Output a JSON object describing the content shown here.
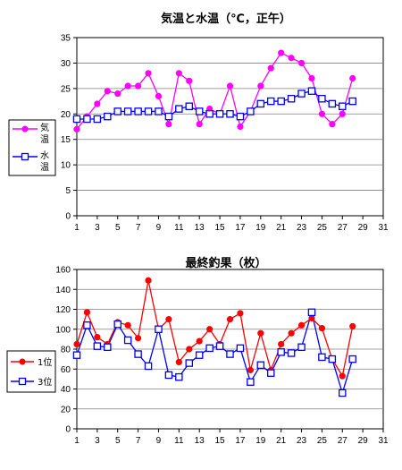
{
  "chart_data": [
    {
      "type": "line",
      "title": "気温と水温（℃，正午）",
      "xlabel": "",
      "ylabel": "",
      "x_ticks": [
        1,
        3,
        5,
        7,
        9,
        11,
        13,
        15,
        17,
        19,
        21,
        23,
        25,
        27,
        29,
        31
      ],
      "xlim": [
        1,
        31
      ],
      "ylim": [
        0,
        35
      ],
      "y_ticks": [
        0,
        5,
        10,
        15,
        20,
        25,
        30,
        35
      ],
      "grid": "horizontal",
      "legend_position": "left",
      "x": [
        1,
        2,
        3,
        4,
        5,
        6,
        7,
        8,
        9,
        10,
        11,
        12,
        13,
        14,
        15,
        16,
        17,
        18,
        19,
        20,
        21,
        22,
        23,
        24,
        25,
        26,
        27,
        28
      ],
      "series": [
        {
          "name": "気温",
          "legend_chars": [
            "気",
            "温"
          ],
          "color": "#ff00ff",
          "marker": "circle",
          "values": [
            17,
            19.5,
            22,
            24.5,
            24,
            25.5,
            25.5,
            28,
            23.5,
            18,
            28,
            26.5,
            18,
            21,
            20,
            25.5,
            17.5,
            20.5,
            25.5,
            29,
            32,
            31,
            30,
            27,
            20,
            18,
            20,
            27
          ]
        },
        {
          "name": "水温",
          "legend_chars": [
            "水",
            "温"
          ],
          "color": "#0000ff",
          "marker": "square",
          "values": [
            19,
            19,
            19,
            19.5,
            20.5,
            20.5,
            20.5,
            20.5,
            20.5,
            19.5,
            21,
            21.5,
            20.5,
            20,
            20,
            20,
            19.5,
            20.5,
            22,
            22.5,
            22.5,
            23,
            24,
            24.5,
            23,
            22,
            21.5,
            22.5
          ]
        }
      ]
    },
    {
      "type": "line",
      "title": "最終釣果（枚）",
      "xlabel": "",
      "ylabel": "",
      "x_ticks": [
        1,
        3,
        5,
        7,
        9,
        11,
        13,
        15,
        17,
        19,
        21,
        23,
        25,
        27,
        29,
        31
      ],
      "xlim": [
        1,
        31
      ],
      "ylim": [
        0,
        160
      ],
      "y_ticks": [
        0,
        20,
        40,
        60,
        80,
        100,
        120,
        140,
        160
      ],
      "grid": "horizontal",
      "legend_position": "left",
      "x": [
        1,
        2,
        3,
        4,
        5,
        6,
        7,
        8,
        9,
        10,
        11,
        12,
        13,
        14,
        15,
        16,
        17,
        18,
        19,
        20,
        21,
        22,
        23,
        24,
        25,
        26,
        27,
        28
      ],
      "series": [
        {
          "name": "1位",
          "color": "#ff0000",
          "marker": "circle",
          "values": [
            85,
            117,
            92,
            85,
            107,
            104,
            91,
            149,
            100,
            110,
            67,
            80,
            88,
            100,
            85,
            110,
            116,
            59,
            96,
            59,
            85,
            96,
            104,
            111,
            101,
            70,
            53,
            103
          ]
        },
        {
          "name": "3位",
          "color": "#0000ff",
          "marker": "square",
          "values": [
            74,
            104,
            83,
            82,
            105,
            89,
            75,
            63,
            100,
            54,
            52,
            66,
            74,
            81,
            83,
            75,
            81,
            47,
            64,
            56,
            77,
            76,
            82,
            117,
            72,
            70,
            36,
            70
          ]
        }
      ]
    }
  ]
}
